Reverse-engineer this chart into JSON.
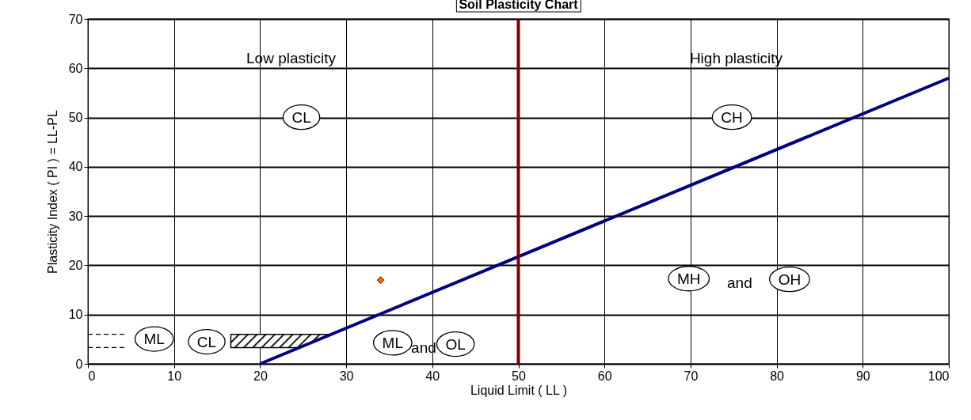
{
  "chart_data": {
    "type": "line",
    "title": "Soil Plasticity Chart",
    "xlabel": "Liquid Limit ( LL )",
    "ylabel": "Plasticity Index ( PI ) = LL-PL",
    "xlim": [
      0,
      100
    ],
    "xticks": [
      0,
      10,
      20,
      30,
      40,
      50,
      60,
      70,
      80,
      90,
      100
    ],
    "ylim": [
      0,
      70
    ],
    "yticks": [
      0,
      10,
      20,
      30,
      40,
      50,
      60,
      70
    ],
    "grid": true,
    "series": [
      {
        "color": "#000000",
        "line_style": "dashed",
        "x": [
          0,
          4.5
        ],
        "values": [
          6,
          6
        ]
      },
      {
        "color": "#000000",
        "line_style": "dashed",
        "x": [
          0,
          4.5
        ],
        "values": [
          3.3,
          3.3
        ]
      },
      {
        "color": "#000080",
        "line_style": "solid",
        "x": [
          20,
          100
        ],
        "values": [
          0,
          58
        ]
      },
      {
        "type": "scatter",
        "color": "#ff6600",
        "marker": "diamond",
        "x": [
          34
        ],
        "values": [
          17
        ]
      }
    ],
    "ref_lines": [
      {
        "axis": "x",
        "value": 50,
        "label": null,
        "color": "#800000"
      }
    ],
    "annotations": [
      "Low plasticity",
      "High plasticity",
      "CL",
      "CH",
      "ML",
      "CL",
      "ML",
      "and",
      "OL",
      "MH",
      "and",
      "OH"
    ]
  }
}
